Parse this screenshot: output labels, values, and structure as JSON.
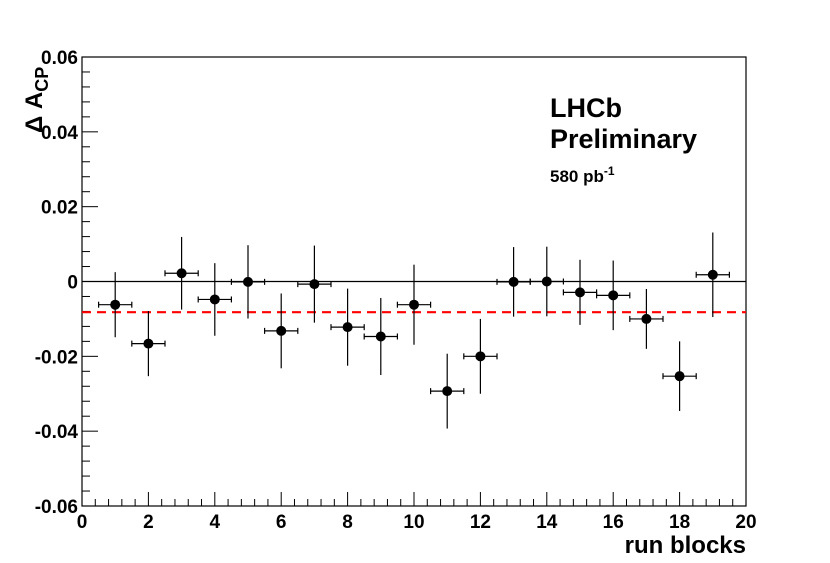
{
  "chart_data": {
    "type": "scatter",
    "xlabel": "run blocks",
    "ylabel": {
      "main": "Δ A",
      "sub": "CP"
    },
    "xlim": [
      0,
      20
    ],
    "ylim": [
      -0.06,
      0.06
    ],
    "x_ticks": [
      0,
      2,
      4,
      6,
      8,
      10,
      12,
      14,
      16,
      18,
      20
    ],
    "x_tick_labels": [
      "0",
      "2",
      "4",
      "6",
      "8",
      "10",
      "12",
      "14",
      "16",
      "18",
      "20"
    ],
    "y_ticks": [
      -0.06,
      -0.04,
      -0.02,
      0,
      0.02,
      0.04,
      0.06
    ],
    "y_tick_labels": [
      "-0.06",
      "-0.04",
      "-0.02",
      "0",
      "0.02",
      "0.04",
      "0.06"
    ],
    "grid": false,
    "annotations": {
      "experiment": "LHCb",
      "status": "Preliminary",
      "luminosity_value": "580 pb",
      "luminosity_exponent": "-1"
    },
    "reference_lines": [
      {
        "y": 0,
        "style": "solid",
        "color": "#000000"
      },
      {
        "y": -0.0082,
        "style": "dashed",
        "color": "#ff0000"
      }
    ],
    "series": [
      {
        "x": [
          1,
          2,
          3,
          4,
          5,
          6,
          7,
          8,
          9,
          10,
          11,
          12,
          13,
          14,
          15,
          16,
          17,
          18,
          19
        ],
        "x_err": [
          0.5,
          0.5,
          0.5,
          0.5,
          0.5,
          0.5,
          0.5,
          0.5,
          0.5,
          0.5,
          0.5,
          0.5,
          0.5,
          0.5,
          0.5,
          0.5,
          0.5,
          0.5,
          0.5
        ],
        "y": [
          -0.0062,
          -0.0166,
          0.0022,
          -0.0048,
          -0.0001,
          -0.0132,
          -0.0007,
          -0.0122,
          -0.0147,
          -0.0062,
          -0.0293,
          -0.02,
          -0.0001,
          0.0,
          -0.0029,
          -0.0037,
          -0.01,
          -0.0253,
          0.0018
        ],
        "y_err": [
          0.0087,
          0.0087,
          0.0097,
          0.0097,
          0.0098,
          0.01,
          0.0103,
          0.0103,
          0.0103,
          0.0107,
          0.01,
          0.01,
          0.0093,
          0.0093,
          0.0087,
          0.0093,
          0.008,
          0.0093,
          0.0113
        ]
      }
    ]
  }
}
